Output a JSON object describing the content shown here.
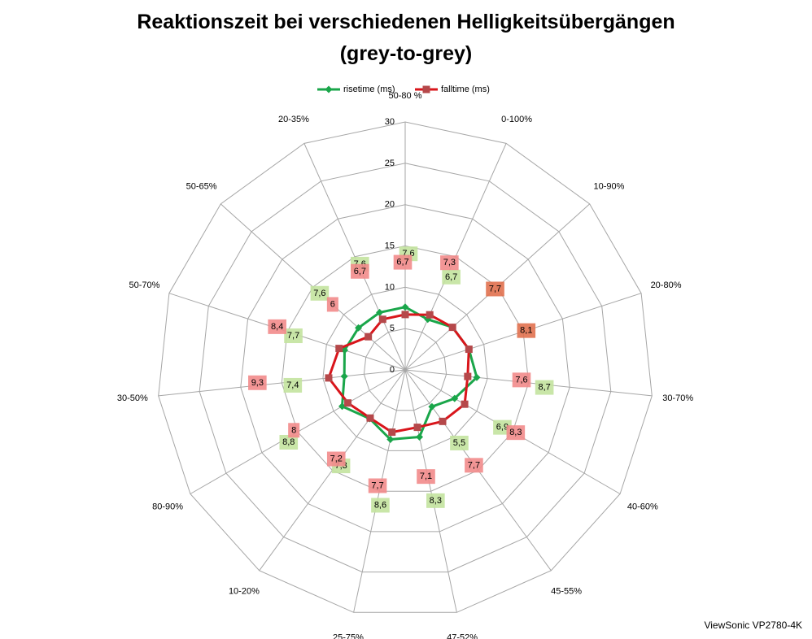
{
  "title_line1": "Reaktionszeit bei verschiedenen Helligkeitsübergängen",
  "title_line2": "(grey-to-grey)",
  "credit": "ViewSonic VP2780-4K",
  "colors": {
    "rise": "#1aa64a",
    "fall": "#d9151b",
    "fall_marker": "#b5484a",
    "grid": "#a6a6a6",
    "rise_label_bg": "#c3e39f",
    "fall_label_bg": "#f28b8b",
    "overlap_label_bg": "#e1714f"
  },
  "chart_data": {
    "type": "radar",
    "categories": [
      "50-80 %",
      "0-100%",
      "10-90%",
      "20-80%",
      "30-70%",
      "40-60%",
      "45-55%",
      "47-52%",
      "25-75%",
      "10-20%",
      "80-90%",
      "30-50%",
      "50-70%",
      "50-65%",
      "20-35%"
    ],
    "rlim": [
      0,
      30
    ],
    "ticks": [
      "0",
      "5",
      "10",
      "15",
      "20",
      "25",
      "30"
    ],
    "legend_position": "top",
    "series": [
      {
        "name": "risetime (ms)",
        "values": [
          7.6,
          6.7,
          7.7,
          8.1,
          8.7,
          6.9,
          5.5,
          8.3,
          8.6,
          7.3,
          8.8,
          7.4,
          7.7,
          7.6,
          7.6
        ],
        "labels": [
          "7,6",
          "6,7",
          "7,7",
          "8,1",
          "8,7",
          "6,9",
          "5,5",
          "8,3",
          "8,6",
          "7,3",
          "8,8",
          "7,4",
          "7,7",
          "7,6",
          "7,6"
        ]
      },
      {
        "name": "falltime (ms)",
        "values": [
          6.7,
          7.3,
          7.7,
          8.1,
          7.6,
          8.3,
          7.7,
          7.1,
          7.7,
          7.2,
          8.0,
          9.3,
          8.4,
          6.0,
          6.7
        ],
        "labels": [
          "6,7",
          "7,3",
          "7,7",
          "8,1",
          "7,6",
          "8,3",
          "7,7",
          "7,1",
          "7,7",
          "7,2",
          "8",
          "9,3",
          "8,4",
          "6",
          "6,7"
        ]
      }
    ]
  }
}
